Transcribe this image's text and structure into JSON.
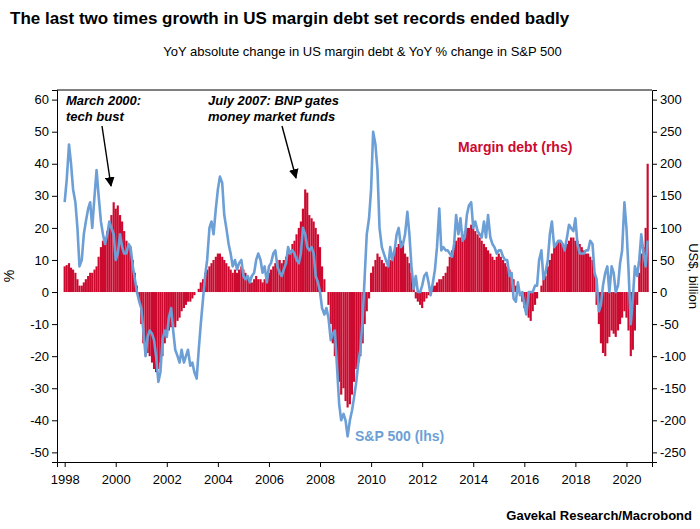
{
  "chart_data": {
    "type": "bar",
    "title": "The last two times growth in US margin debt set records ended badly",
    "subtitle": "YoY absolute change in US margin debt & YoY % change in S&P 500",
    "ylabel": "%",
    "y2label": "US$, billion",
    "source": "Gavekal Research/Macrobond",
    "annotations": [
      [
        "March 2000:",
        "tech bust"
      ],
      [
        "July 2007: BNP gates",
        "money market funds"
      ]
    ],
    "xlim": [
      1997.7,
      2021
    ],
    "xticks": [
      1998,
      2000,
      2002,
      2004,
      2006,
      2008,
      2010,
      2012,
      2014,
      2016,
      2018,
      2020
    ],
    "ylim": [
      -53,
      63
    ],
    "yticks": [
      -50,
      -40,
      -30,
      -20,
      -10,
      0,
      10,
      20,
      30,
      40,
      50,
      60
    ],
    "y2lim": [
      -265,
      315
    ],
    "y2ticks": [
      -250,
      -200,
      -150,
      -100,
      -50,
      0,
      50,
      100,
      150,
      200,
      250,
      300
    ],
    "x": [
      1998,
      1998.08,
      1998.17,
      1998.25,
      1998.33,
      1998.42,
      1998.5,
      1998.58,
      1998.67,
      1998.75,
      1998.83,
      1998.92,
      1999,
      1999.08,
      1999.17,
      1999.25,
      1999.33,
      1999.42,
      1999.5,
      1999.58,
      1999.67,
      1999.75,
      1999.83,
      1999.92,
      2000,
      2000.08,
      2000.17,
      2000.25,
      2000.33,
      2000.42,
      2000.5,
      2000.58,
      2000.67,
      2000.75,
      2000.83,
      2000.92,
      2001,
      2001.08,
      2001.17,
      2001.25,
      2001.33,
      2001.42,
      2001.5,
      2001.58,
      2001.67,
      2001.75,
      2001.83,
      2001.92,
      2002,
      2002.08,
      2002.17,
      2002.25,
      2002.33,
      2002.42,
      2002.5,
      2002.58,
      2002.67,
      2002.75,
      2002.83,
      2002.92,
      2003,
      2003.08,
      2003.17,
      2003.25,
      2003.33,
      2003.42,
      2003.5,
      2003.58,
      2003.67,
      2003.75,
      2003.83,
      2003.92,
      2004,
      2004.08,
      2004.17,
      2004.25,
      2004.33,
      2004.42,
      2004.5,
      2004.58,
      2004.67,
      2004.75,
      2004.83,
      2004.92,
      2005,
      2005.08,
      2005.17,
      2005.25,
      2005.33,
      2005.42,
      2005.5,
      2005.58,
      2005.67,
      2005.75,
      2005.83,
      2005.92,
      2006,
      2006.08,
      2006.17,
      2006.25,
      2006.33,
      2006.42,
      2006.5,
      2006.58,
      2006.67,
      2006.75,
      2006.83,
      2006.92,
      2007,
      2007.08,
      2007.17,
      2007.25,
      2007.33,
      2007.42,
      2007.5,
      2007.58,
      2007.67,
      2007.75,
      2007.83,
      2007.92,
      2008,
      2008.08,
      2008.17,
      2008.25,
      2008.33,
      2008.42,
      2008.5,
      2008.58,
      2008.67,
      2008.75,
      2008.83,
      2008.92,
      2009,
      2009.08,
      2009.17,
      2009.25,
      2009.33,
      2009.42,
      2009.5,
      2009.58,
      2009.67,
      2009.75,
      2009.83,
      2009.92,
      2010,
      2010.08,
      2010.17,
      2010.25,
      2010.33,
      2010.42,
      2010.5,
      2010.58,
      2010.67,
      2010.75,
      2010.83,
      2010.92,
      2011,
      2011.08,
      2011.17,
      2011.25,
      2011.33,
      2011.42,
      2011.5,
      2011.58,
      2011.67,
      2011.75,
      2011.83,
      2011.92,
      2012,
      2012.08,
      2012.17,
      2012.25,
      2012.33,
      2012.42,
      2012.5,
      2012.58,
      2012.67,
      2012.75,
      2012.83,
      2012.92,
      2013,
      2013.08,
      2013.17,
      2013.25,
      2013.33,
      2013.42,
      2013.5,
      2013.58,
      2013.67,
      2013.75,
      2013.83,
      2013.92,
      2014,
      2014.08,
      2014.17,
      2014.25,
      2014.33,
      2014.42,
      2014.5,
      2014.58,
      2014.67,
      2014.75,
      2014.83,
      2014.92,
      2015,
      2015.08,
      2015.17,
      2015.25,
      2015.33,
      2015.42,
      2015.5,
      2015.58,
      2015.67,
      2015.75,
      2015.83,
      2015.92,
      2016,
      2016.08,
      2016.17,
      2016.25,
      2016.33,
      2016.42,
      2016.5,
      2016.58,
      2016.67,
      2016.75,
      2016.83,
      2016.92,
      2017,
      2017.08,
      2017.17,
      2017.25,
      2017.33,
      2017.42,
      2017.5,
      2017.58,
      2017.67,
      2017.75,
      2017.83,
      2017.92,
      2018,
      2018.08,
      2018.17,
      2018.25,
      2018.33,
      2018.42,
      2018.5,
      2018.58,
      2018.67,
      2018.75,
      2018.83,
      2018.92,
      2019,
      2019.08,
      2019.17,
      2019.25,
      2019.33,
      2019.42,
      2019.5,
      2019.58,
      2019.67,
      2019.75,
      2019.83,
      2019.92,
      2020,
      2020.08,
      2020.17,
      2020.25,
      2020.33,
      2020.42,
      2020.5,
      2020.58,
      2020.67,
      2020.75,
      2020.83
    ],
    "series": [
      {
        "name": "Margin debt (rhs)",
        "type": "bar",
        "axis": "y2",
        "color": "#cc0a2f",
        "values": [
          40,
          42,
          45,
          38,
          35,
          30,
          20,
          10,
          10,
          15,
          20,
          25,
          30,
          30,
          35,
          40,
          55,
          70,
          80,
          85,
          95,
          110,
          120,
          140,
          130,
          135,
          120,
          110,
          95,
          80,
          75,
          70,
          50,
          30,
          10,
          -15,
          -50,
          -80,
          -100,
          -95,
          -100,
          -110,
          -120,
          -125,
          -120,
          -110,
          -100,
          -80,
          -70,
          -60,
          -55,
          -50,
          -55,
          -45,
          -40,
          -30,
          -25,
          -20,
          -15,
          -15,
          -10,
          -5,
          0,
          5,
          15,
          20,
          30,
          35,
          40,
          45,
          50,
          55,
          60,
          60,
          55,
          50,
          45,
          40,
          35,
          30,
          35,
          30,
          35,
          40,
          35,
          30,
          25,
          20,
          15,
          20,
          25,
          20,
          20,
          15,
          20,
          25,
          30,
          35,
          40,
          45,
          50,
          50,
          45,
          50,
          55,
          60,
          65,
          75,
          80,
          90,
          100,
          110,
          130,
          160,
          155,
          120,
          115,
          110,
          100,
          90,
          70,
          40,
          20,
          0,
          -20,
          -50,
          -80,
          -100,
          -120,
          -140,
          -160,
          -150,
          -170,
          -180,
          -175,
          -160,
          -140,
          -120,
          -110,
          -100,
          -80,
          -50,
          -30,
          -10,
          30,
          40,
          50,
          60,
          55,
          50,
          45,
          40,
          40,
          50,
          60,
          65,
          70,
          75,
          80,
          75,
          60,
          55,
          45,
          30,
          5,
          -10,
          -15,
          -20,
          -25,
          -15,
          -10,
          -5,
          0,
          10,
          10,
          15,
          20,
          20,
          25,
          30,
          40,
          55,
          65,
          70,
          80,
          85,
          85,
          90,
          95,
          100,
          100,
          105,
          100,
          95,
          90,
          85,
          80,
          75,
          70,
          65,
          60,
          55,
          50,
          55,
          60,
          55,
          50,
          45,
          40,
          35,
          30,
          20,
          10,
          0,
          -5,
          -15,
          -25,
          -35,
          -40,
          -45,
          -30,
          -20,
          -10,
          0,
          10,
          20,
          25,
          40,
          50,
          60,
          70,
          75,
          80,
          80,
          75,
          70,
          75,
          80,
          85,
          85,
          80,
          80,
          75,
          70,
          65,
          60,
          60,
          55,
          50,
          30,
          -20,
          -50,
          -80,
          -95,
          -100,
          -80,
          -70,
          -60,
          -65,
          -70,
          -60,
          -50,
          -40,
          -30,
          -40,
          -60,
          -100,
          -90,
          -60,
          -20,
          30,
          60,
          70,
          100,
          200
        ]
      },
      {
        "name": "S&P 500 (lhs)",
        "type": "line",
        "color": "#6c9fd6",
        "values": [
          28,
          35,
          46,
          40,
          32,
          28,
          20,
          8,
          10,
          18,
          22,
          26,
          28,
          20,
          30,
          38,
          30,
          22,
          18,
          15,
          18,
          22,
          20,
          18,
          10,
          12,
          18,
          14,
          12,
          12,
          15,
          14,
          8,
          4,
          0,
          -3,
          -5,
          -12,
          -20,
          -14,
          -12,
          -13,
          -15,
          -20,
          -28,
          -25,
          -15,
          -12,
          -14,
          -8,
          -5,
          -12,
          -18,
          -20,
          -22,
          -18,
          -22,
          -20,
          -18,
          -23,
          -22,
          -25,
          -27,
          -18,
          -10,
          -2,
          5,
          10,
          20,
          22,
          18,
          26,
          32,
          36,
          34,
          24,
          20,
          15,
          12,
          8,
          10,
          7,
          9,
          10,
          5,
          4,
          5,
          3,
          5,
          6,
          10,
          12,
          10,
          6,
          8,
          3,
          8,
          9,
          12,
          13,
          8,
          6,
          5,
          7,
          9,
          14,
          12,
          13,
          12,
          10,
          9,
          12,
          20,
          18,
          14,
          13,
          14,
          12,
          5,
          3,
          0,
          -5,
          -7,
          -5,
          -8,
          -15,
          -13,
          -12,
          -24,
          -35,
          -40,
          -38,
          -40,
          -45,
          -40,
          -37,
          -33,
          -28,
          -22,
          -18,
          -8,
          5,
          18,
          23,
          32,
          50,
          46,
          38,
          20,
          14,
          12,
          10,
          8,
          14,
          10,
          13,
          18,
          20,
          14,
          15,
          18,
          25,
          18,
          8,
          1,
          5,
          0,
          0,
          2,
          5,
          6,
          3,
          -1,
          3,
          7,
          14,
          26,
          13,
          14,
          13,
          13,
          12,
          11,
          15,
          24,
          18,
          23,
          16,
          17,
          24,
          27,
          28,
          20,
          22,
          19,
          18,
          17,
          22,
          17,
          24,
          17,
          15,
          14,
          12,
          13,
          13,
          11,
          10,
          10,
          5,
          6,
          -2,
          -3,
          3,
          -1,
          0,
          -4,
          -7,
          0,
          0,
          0,
          2,
          2,
          10,
          13,
          4,
          6,
          10,
          18,
          22,
          14,
          15,
          16,
          16,
          15,
          13,
          17,
          21,
          20,
          19,
          23,
          15,
          12,
          12,
          12,
          13,
          13,
          16,
          15,
          6,
          4,
          -6,
          -4,
          2,
          6,
          8,
          0,
          8,
          6,
          0,
          2,
          9,
          13,
          28,
          20,
          7,
          -10,
          -2,
          8,
          5,
          10,
          18,
          12,
          8,
          16
        ]
      }
    ]
  }
}
